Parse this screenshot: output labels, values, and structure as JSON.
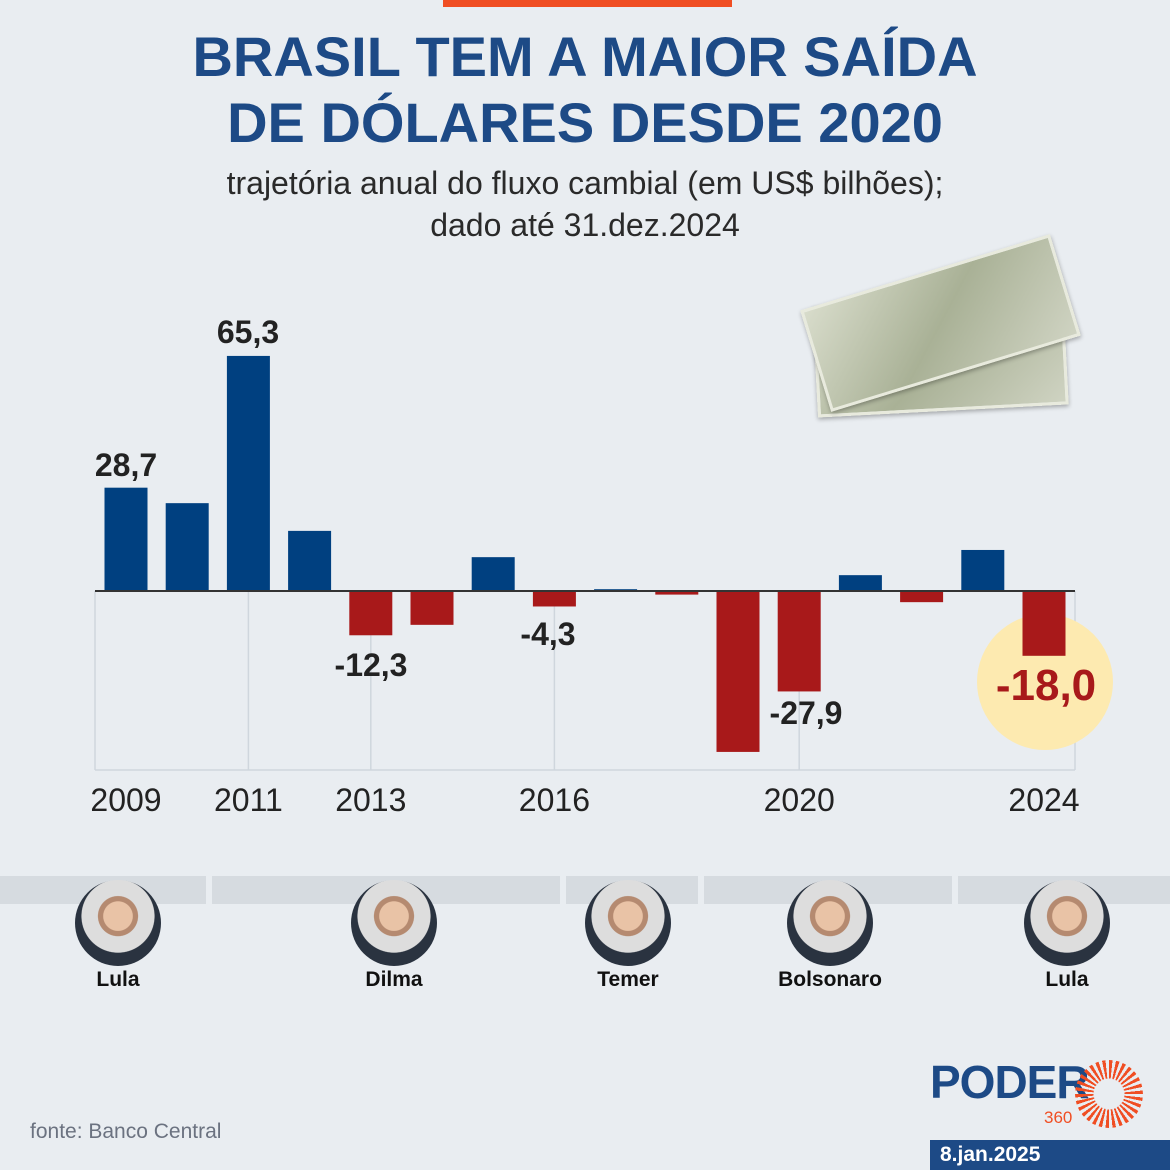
{
  "header": {
    "title_line1": "BRASIL TEM A MAIOR SAÍDA",
    "title_line2": "DE DÓLARES DESDE 2020",
    "subtitle_line1": "trajetória anual do fluxo cambial (em US$ bilhões);",
    "subtitle_line2": "dado até 31.dez.2024"
  },
  "chart_data": {
    "type": "bar",
    "title": "BRASIL TEM A MAIOR SAÍDA DE DÓLARES DESDE 2020",
    "ylabel": "US$ bilhões",
    "categories": [
      "2009",
      "2010",
      "2011",
      "2012",
      "2013",
      "2014",
      "2015",
      "2016",
      "2017",
      "2018",
      "2019",
      "2020",
      "2021",
      "2022",
      "2023",
      "2024"
    ],
    "values": [
      28.7,
      24.4,
      65.3,
      16.7,
      -12.3,
      -9.4,
      9.4,
      -4.3,
      0.5,
      -1.0,
      -44.7,
      -27.9,
      4.4,
      -3.1,
      11.4,
      -18.0
    ],
    "tick_labels": [
      "2009",
      "2011",
      "2013",
      "2016",
      "2020",
      "2024"
    ],
    "data_labels": [
      {
        "year": "2009",
        "text": "28,7"
      },
      {
        "year": "2011",
        "text": "65,3"
      },
      {
        "year": "2013",
        "text": "-12,3"
      },
      {
        "year": "2016",
        "text": "-4,3"
      },
      {
        "year": "2020",
        "text": "-27,9"
      },
      {
        "year": "2024",
        "text": "-18,0"
      }
    ],
    "colors": {
      "positive": "#004080",
      "negative": "#a8191a",
      "highlight": "#fdeab0"
    }
  },
  "presidents": [
    "Lula",
    "Dilma",
    "Temer",
    "Bolsonaro",
    "Lula"
  ],
  "footer": {
    "source": "fonte: Banco Central",
    "logo": "PODER",
    "logo_sub": "360",
    "date": "8.jan.2025"
  }
}
